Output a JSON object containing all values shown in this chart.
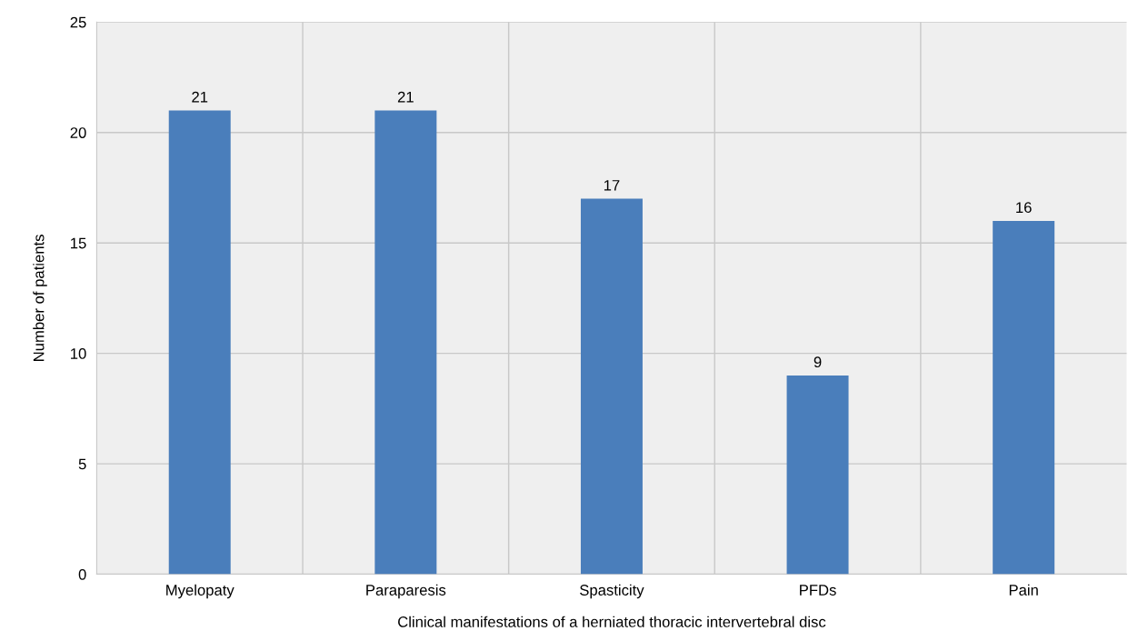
{
  "chart_data": {
    "type": "bar",
    "xlabel": "Clinical manifestations of a herniated thoracic intervertebral disc",
    "ylabel": "Number of patients",
    "categories": [
      "Myelopaty",
      "Paraparesis",
      "Spasticity",
      "PFDs",
      "Pain"
    ],
    "values": [
      21,
      21,
      17,
      9,
      16
    ],
    "color": "#4a7ebb",
    "ylim": [
      0,
      25
    ],
    "yticks": [
      0,
      5,
      10,
      15,
      20,
      25
    ],
    "grid": true,
    "data_labels": true
  }
}
